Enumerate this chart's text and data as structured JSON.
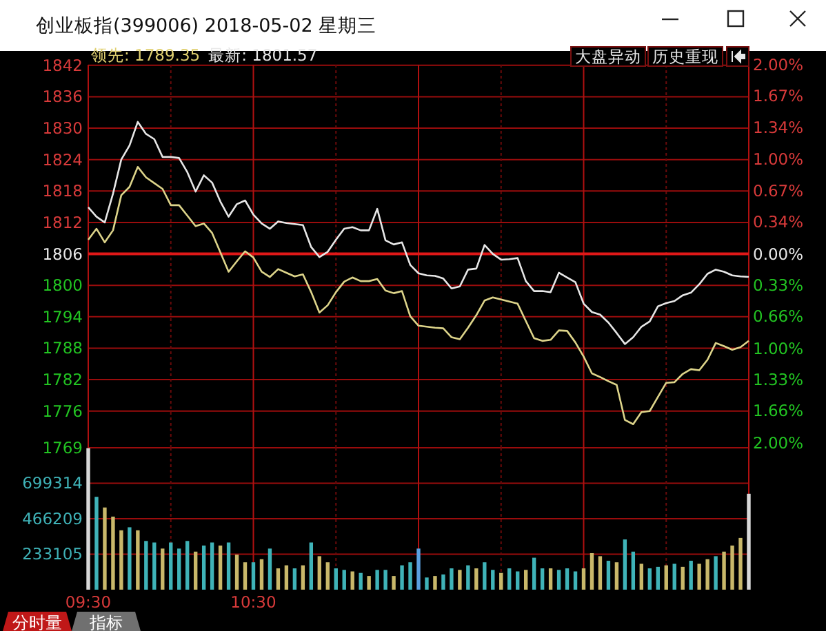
{
  "chart_data": [
    {
      "type": "line",
      "title": "创业板指(399006) 2018-05-02 星期三",
      "annotations": [
        "领先: 1789.35",
        "最新: 1801.57",
        "大盘异动",
        "历史重现"
      ],
      "categories": [
        null,
        null,
        null,
        null,
        null,
        null,
        null,
        null,
        null,
        null,
        null,
        null,
        null,
        null,
        null,
        null,
        null,
        null,
        null,
        null,
        null,
        null,
        null,
        null,
        null,
        null,
        null,
        null,
        null,
        null,
        null,
        null,
        null,
        null,
        null,
        null,
        null,
        null,
        null,
        null,
        null,
        null,
        null,
        null,
        null,
        null,
        null,
        null,
        null,
        null,
        null,
        null,
        null,
        null,
        null,
        null,
        null,
        null,
        null,
        null,
        null,
        null,
        null,
        null,
        null,
        null,
        null,
        null,
        null,
        null,
        null,
        null,
        null,
        null,
        null,
        null,
        null,
        null,
        null,
        null,
        null
      ],
      "ylim": [
        1769,
        1842.1
      ],
      "yticks": [
        1842,
        1836,
        1830,
        1824,
        1818,
        1812,
        1806,
        1800,
        1794,
        1788,
        1782,
        1776,
        1769
      ],
      "y2lim": [
        -2.05,
        2
      ],
      "y2ticks": [
        {
          "value": 2,
          "label": "2.00%"
        },
        {
          "value": 1.67,
          "label": "1.67%"
        },
        {
          "value": 1.34,
          "label": "1.34%"
        },
        {
          "value": 1,
          "label": "1.00%"
        },
        {
          "value": 0.67,
          "label": "0.67%"
        },
        {
          "value": 0.34,
          "label": "0.34%"
        },
        {
          "value": 0,
          "label": "0.00%"
        },
        {
          "value": -0.33,
          "label": "0.33%"
        },
        {
          "value": -0.66,
          "label": "0.66%"
        },
        {
          "value": -1,
          "label": "1.00%"
        },
        {
          "value": -1.33,
          "label": "1.33%"
        },
        {
          "value": -1.66,
          "label": "1.66%"
        },
        {
          "value": -2,
          "label": "2.00%"
        }
      ],
      "ref_lines": [
        {
          "axis": "y",
          "value": 1806,
          "color": "#e01818"
        }
      ],
      "grid": true,
      "tick_labels": "y",
      "line_style": "solid",
      "series": [
        {
          "color": "#e6e6e6",
          "values": [
            1814.9,
            1813.1,
            1812.0,
            1817.5,
            1824.0,
            1826.7,
            1831.2,
            1828.9,
            1827.9,
            1824.5,
            1824.5,
            1824.3,
            1821.6,
            1817.9,
            1821.0,
            1819.6,
            1816.0,
            1813.1,
            1815.5,
            1816.2,
            1813.5,
            1811.8,
            1810.8,
            1812.2,
            1811.9,
            1811.7,
            1811.5,
            1807.3,
            1805.4,
            1806.4,
            1808.7,
            1810.8,
            1811.1,
            1810.5,
            1810.5,
            1814.6,
            1808.6,
            1807.8,
            1808.2,
            1803.9,
            1802.3,
            1801.9,
            1801.8,
            1801.3,
            1799.4,
            1799.8,
            1803.0,
            1803.2,
            1807.7,
            1806.0,
            1804.9,
            1805.0,
            1805.2,
            1800.8,
            1798.9,
            1798.9,
            1798.7,
            1802.4,
            1801.5,
            1800.6,
            1796.5,
            1794.9,
            1794.4,
            1792.9,
            1790.9,
            1788.8,
            1790.1,
            1792.1,
            1793.1,
            1796.0,
            1796.6,
            1797.0,
            1798.1,
            1798.6,
            1800.2,
            1802.2,
            1803.0,
            1802.6,
            1801.9,
            1801.7,
            1801.6
          ]
        },
        {
          "color": "#ddd48a",
          "values": [
            1808.7,
            1810.8,
            1808.2,
            1810.5,
            1817.2,
            1818.8,
            1822.6,
            1820.6,
            1819.5,
            1818.4,
            1815.3,
            1815.3,
            1813.3,
            1811.3,
            1811.8,
            1810.0,
            1806.3,
            1802.6,
            1804.6,
            1806.5,
            1805.3,
            1802.6,
            1801.6,
            1803.1,
            1802.4,
            1801.7,
            1802.1,
            1798.7,
            1794.8,
            1796.2,
            1798.7,
            1800.7,
            1801.5,
            1800.8,
            1800.8,
            1801.2,
            1799.0,
            1798.5,
            1798.9,
            1794.1,
            1792.3,
            1792.1,
            1791.9,
            1791.8,
            1790.1,
            1789.7,
            1791.9,
            1794.3,
            1797.1,
            1797.7,
            1797.3,
            1796.9,
            1796.5,
            1793.2,
            1789.9,
            1789.4,
            1789.6,
            1791.4,
            1791.3,
            1789.1,
            1786.4,
            1783.2,
            1782.5,
            1781.7,
            1781.0,
            1774.3,
            1773.5,
            1775.8,
            1776.0,
            1778.7,
            1781.4,
            1781.5,
            1783.1,
            1784.0,
            1783.8,
            1785.8,
            1789.0,
            1788.4,
            1787.7,
            1788.2,
            1789.4
          ]
        }
      ]
    },
    {
      "type": "bar",
      "annotations": [
        "分时量",
        "指标"
      ],
      "categories": [
        "09:30",
        null,
        null,
        null,
        null,
        null,
        null,
        null,
        null,
        null,
        null,
        null,
        null,
        null,
        null,
        null,
        null,
        null,
        null,
        null,
        "10:30",
        null,
        null,
        null,
        null,
        null,
        null,
        null,
        null,
        null,
        null,
        null,
        null,
        null,
        null,
        null,
        null,
        null,
        null,
        null,
        null,
        null,
        null,
        null,
        null,
        null,
        null,
        null,
        null,
        null,
        null,
        null,
        null,
        null,
        null,
        null,
        null,
        null,
        null,
        null,
        null,
        null,
        null,
        null,
        null,
        null,
        null,
        null,
        null,
        null,
        null,
        null,
        null,
        null,
        null,
        null,
        null,
        null,
        null,
        null,
        null
      ],
      "ylim": [
        0,
        932418
      ],
      "yticks": [
        233105,
        466209,
        699314
      ],
      "grid": true,
      "values": [
        930000,
        610000,
        540000,
        480000,
        390000,
        410000,
        390000,
        320000,
        310000,
        270000,
        310000,
        270000,
        320000,
        250000,
        290000,
        310000,
        290000,
        310000,
        230000,
        180000,
        180000,
        200000,
        270000,
        140000,
        160000,
        140000,
        160000,
        310000,
        220000,
        180000,
        140000,
        130000,
        120000,
        110000,
        90000,
        130000,
        130000,
        90000,
        160000,
        180000,
        270000,
        80000,
        90000,
        100000,
        140000,
        130000,
        160000,
        140000,
        180000,
        130000,
        110000,
        140000,
        120000,
        130000,
        210000,
        140000,
        140000,
        130000,
        140000,
        120000,
        140000,
        240000,
        220000,
        190000,
        180000,
        330000,
        250000,
        170000,
        140000,
        150000,
        160000,
        170000,
        150000,
        190000,
        170000,
        200000,
        220000,
        250000,
        290000,
        340000,
        630000
      ],
      "colors": [
        "#d8d8d8",
        "#3fb3b8",
        "#c9b86a",
        "#c9b86a",
        "#c9b86a",
        "#3fb3b8",
        "#c9b86a",
        "#3fb3b8",
        "#3fb3b8",
        "#c9b86a",
        "#3fb3b8",
        "#3fb3b8",
        "#3fb3b8",
        "#c9b86a",
        "#3fb3b8",
        "#3fb3b8",
        "#c9b86a",
        "#3fb3b8",
        "#c9b86a",
        "#c9b86a",
        "#3fb3b8",
        "#c9b86a",
        "#3fb3b8",
        "#c9b86a",
        "#c9b86a",
        "#3fb3b8",
        "#c9b86a",
        "#3fb3b8",
        "#c9b86a",
        "#c9b86a",
        "#3fb3b8",
        "#3fb3b8",
        "#c9b86a",
        "#3fb3b8",
        "#c9b86a",
        "#3fb3b8",
        "#3fb3b8",
        "#c9b86a",
        "#3fb3b8",
        "#3fb3b8",
        "#5aa0e0",
        "#3fb3b8",
        "#c9b86a",
        "#3fb3b8",
        "#3fb3b8",
        "#c9b86a",
        "#3fb3b8",
        "#c9b86a",
        "#3fb3b8",
        "#3fb3b8",
        "#c9b86a",
        "#3fb3b8",
        "#3fb3b8",
        "#c9b86a",
        "#3fb3b8",
        "#3fb3b8",
        "#c9b86a",
        "#3fb3b8",
        "#3fb3b8",
        "#3fb3b8",
        "#c9b86a",
        "#c9b86a",
        "#c9b86a",
        "#3fb3b8",
        "#c9b86a",
        "#3fb3b8",
        "#3fb3b8",
        "#c9b86a",
        "#3fb3b8",
        "#3fb3b8",
        "#c9b86a",
        "#3fb3b8",
        "#c9b86a",
        "#3fb3b8",
        "#c9b86a",
        "#c9b86a",
        "#3fb3b8",
        "#c9b86a",
        "#c9b86a",
        "#c9b86a",
        "#d8d8d8"
      ]
    }
  ]
}
